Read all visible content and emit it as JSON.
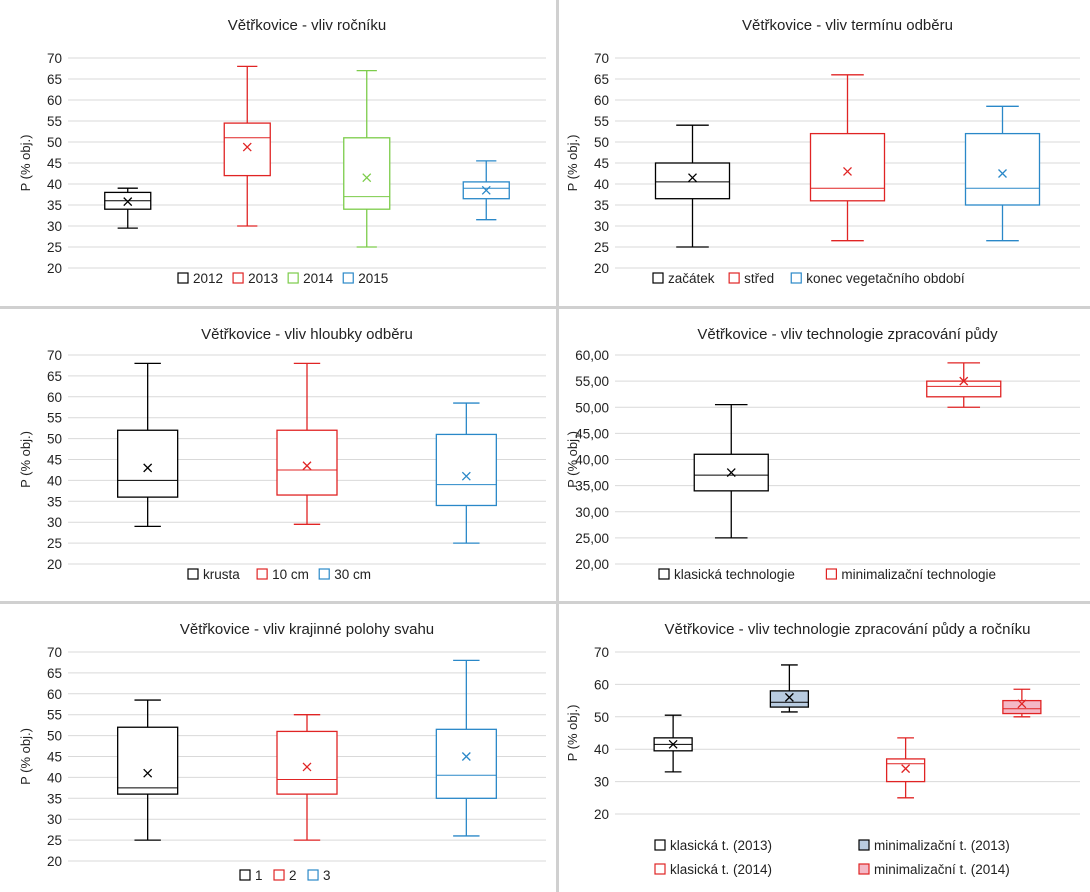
{
  "chart_data": [
    {
      "type": "box",
      "title": "Větřkovice - vliv ročníku",
      "ylabel": "P (% obj.)",
      "ylim": [
        20,
        70
      ],
      "ytick_step": 5,
      "ytick_labels": [
        "20",
        "25",
        "30",
        "35",
        "40",
        "45",
        "50",
        "55",
        "60",
        "65",
        "70"
      ],
      "grid": true,
      "legend_position": "bottom",
      "legend": [
        "2012",
        "2013",
        "2014",
        "2015"
      ],
      "series": [
        {
          "name": "2012",
          "color": "#000000",
          "min": 29.5,
          "q1": 34,
          "median": 36,
          "q3": 38,
          "max": 39,
          "mean": 35.8
        },
        {
          "name": "2013",
          "color": "#e02424",
          "min": 30,
          "q1": 42,
          "median": 51,
          "q3": 54.5,
          "max": 68,
          "mean": 48.8
        },
        {
          "name": "2014",
          "color": "#7ccc4a",
          "min": 25,
          "q1": 34,
          "median": 37,
          "q3": 51,
          "max": 67,
          "mean": 41.5
        },
        {
          "name": "2015",
          "color": "#2a88c8",
          "min": 31.5,
          "q1": 36.5,
          "median": 39,
          "q3": 40.5,
          "max": 45.5,
          "mean": 38.5
        }
      ]
    },
    {
      "type": "box",
      "title": "Větřkovice - vliv termínu odběru",
      "ylabel": "P (% obj.)",
      "ylim": [
        20,
        70
      ],
      "ytick_step": 5,
      "ytick_labels": [
        "20",
        "25",
        "30",
        "35",
        "40",
        "45",
        "50",
        "55",
        "60",
        "65",
        "70"
      ],
      "grid": true,
      "legend_position": "bottom",
      "legend": [
        "začátek",
        "střed",
        "konec vegetačního období"
      ],
      "series": [
        {
          "name": "začátek",
          "color": "#000000",
          "min": 25,
          "q1": 36.5,
          "median": 40.5,
          "q3": 45,
          "max": 54,
          "mean": 41.5
        },
        {
          "name": "střed",
          "color": "#e02424",
          "min": 26.5,
          "q1": 36,
          "median": 39,
          "q3": 52,
          "max": 66,
          "mean": 43
        },
        {
          "name": "konec vegetačního období",
          "color": "#2a88c8",
          "min": 26.5,
          "q1": 35,
          "median": 39,
          "q3": 52,
          "max": 58.5,
          "mean": 42.5
        }
      ]
    },
    {
      "type": "box",
      "title": "Větřkovice - vliv hloubky odběru",
      "ylabel": "P (% obj.)",
      "ylim": [
        20,
        70
      ],
      "ytick_step": 5,
      "ytick_labels": [
        "20",
        "25",
        "30",
        "35",
        "40",
        "45",
        "50",
        "55",
        "60",
        "65",
        "70"
      ],
      "grid": true,
      "legend_position": "bottom",
      "legend": [
        "krusta",
        "10 cm",
        "30 cm"
      ],
      "series": [
        {
          "name": "krusta",
          "color": "#000000",
          "min": 29,
          "q1": 36,
          "median": 40,
          "q3": 52,
          "max": 68,
          "mean": 43
        },
        {
          "name": "10 cm",
          "color": "#e02424",
          "min": 29.5,
          "q1": 36.5,
          "median": 42.5,
          "q3": 52,
          "max": 68,
          "mean": 43.5
        },
        {
          "name": "30 cm",
          "color": "#2a88c8",
          "min": 25,
          "q1": 34,
          "median": 39,
          "q3": 51,
          "max": 58.5,
          "mean": 41
        }
      ]
    },
    {
      "type": "box",
      "title": "Větřkovice - vliv  technologie zpracování půdy",
      "ylabel": "P (% obj.)",
      "ylim": [
        20,
        60
      ],
      "ytick_step": 5,
      "ytick_labels": [
        "20,00",
        "25,00",
        "30,00",
        "35,00",
        "40,00",
        "45,00",
        "50,00",
        "55,00",
        "60,00"
      ],
      "grid": true,
      "legend_position": "bottom",
      "legend": [
        "klasická technologie",
        "minimalizační technologie"
      ],
      "series": [
        {
          "name": "klasická technologie",
          "color": "#000000",
          "min": 25,
          "q1": 34,
          "median": 37,
          "q3": 41,
          "max": 50.5,
          "mean": 37.5
        },
        {
          "name": "minimalizační technologie",
          "color": "#e02424",
          "min": 50,
          "q1": 52,
          "median": 54,
          "q3": 55,
          "max": 58.5,
          "mean": 55
        }
      ]
    },
    {
      "type": "box",
      "title": "Větřkovice - vliv krajinné polohy svahu",
      "ylabel": "P (% obj.)",
      "ylim": [
        20,
        70
      ],
      "ytick_step": 5,
      "ytick_labels": [
        "20",
        "25",
        "30",
        "35",
        "40",
        "45",
        "50",
        "55",
        "60",
        "65",
        "70"
      ],
      "grid": true,
      "legend_position": "bottom",
      "legend": [
        "1",
        "2",
        "3"
      ],
      "series": [
        {
          "name": "1",
          "color": "#000000",
          "min": 25,
          "q1": 36,
          "median": 37.5,
          "q3": 52,
          "max": 58.5,
          "mean": 41
        },
        {
          "name": "2",
          "color": "#e02424",
          "min": 25,
          "q1": 36,
          "median": 39.5,
          "q3": 51,
          "max": 55,
          "mean": 42.5
        },
        {
          "name": "3",
          "color": "#2a88c8",
          "min": 26,
          "q1": 35,
          "median": 40.5,
          "q3": 51.5,
          "max": 68,
          "mean": 45
        }
      ]
    },
    {
      "type": "box",
      "title": "Větřkovice - vliv technologie zpracování půdy a ročníku",
      "ylabel": "P (% obj.)",
      "ylim": [
        20,
        70
      ],
      "ytick_step": 10,
      "ytick_labels": [
        "20",
        "30",
        "40",
        "50",
        "60",
        "70"
      ],
      "grid": true,
      "legend_position": "bottom",
      "legend": [
        "klasická t. (2013)",
        "minimalizační t. (2013)",
        "klasická t. (2014)",
        "minimalizační t. (2014)"
      ],
      "series": [
        {
          "name": "klasická t. (2013)",
          "color": "#000000",
          "fill": "#ffffff",
          "min": 33,
          "q1": 39.5,
          "median": 41.5,
          "q3": 43.5,
          "max": 50.5,
          "mean": 41.5
        },
        {
          "name": "minimalizační t. (2013)",
          "color": "#000000",
          "fill": "#b8cbe0",
          "min": 51.5,
          "q1": 53,
          "median": 54.5,
          "q3": 58,
          "max": 66,
          "mean": 56
        },
        {
          "name": "klasická t. (2014)",
          "color": "#e02424",
          "fill": "#ffffff",
          "min": 25,
          "q1": 30,
          "median": 35.5,
          "q3": 37,
          "max": 43.5,
          "mean": 34
        },
        {
          "name": "minimalizační t. (2014)",
          "color": "#e02424",
          "fill": "#f4b8c6",
          "min": 50,
          "q1": 51,
          "median": 52.5,
          "q3": 55,
          "max": 58.5,
          "mean": 54
        }
      ]
    }
  ]
}
